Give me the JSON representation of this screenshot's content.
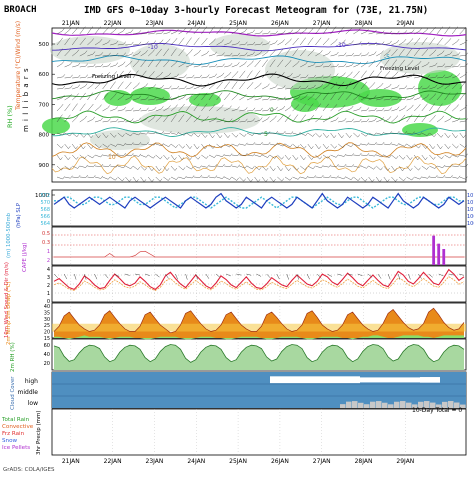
{
  "station": "BROACH",
  "title": "IMD GFS 0~10day 3-hourly Forecast Meteogram for (73E, 21.75N)",
  "credit": "GrADS: COLA/IGES",
  "dates": [
    "21JAN",
    "22JAN",
    "23JAN",
    "24JAN",
    "25JAN",
    "26JAN",
    "27JAN",
    "28JAN",
    "29JAN"
  ],
  "panels": {
    "upper": {
      "left_labels": [
        "RH (%)",
        "Temperature (°C)/Wind (m/s)"
      ],
      "right_label": "m i l l i b a r s",
      "ticks": [
        "500",
        "600",
        "700",
        "800",
        "900",
        "1000"
      ],
      "annotations": [
        "Freezing Level",
        "Freezing Level",
        "-10",
        "-10",
        "-5",
        "0",
        "5",
        "5",
        "10"
      ]
    },
    "gpm": {
      "left_labels": [
        "(m) 1000-500mb",
        "(hPa) SLP"
      ],
      "left_ticks": [
        "572",
        "570",
        "568",
        "566",
        "564"
      ],
      "right_ticks": [
        "1014",
        "1012",
        "1010",
        "1008",
        "1006"
      ]
    },
    "cape": {
      "left_label": "CAPE (J/kg)",
      "ticks": [
        "0.5",
        "0.3",
        "1",
        "2"
      ]
    },
    "wind": {
      "left_label": "10m Wind Speed & Dir (m/s)",
      "ticks": [
        "4",
        "3",
        "2",
        "1",
        "0"
      ]
    },
    "temp": {
      "left_label": "2m Temp 2m Dewp (°C)",
      "ticks": [
        "40",
        "35",
        "30",
        "25",
        "20",
        "15"
      ]
    },
    "rh": {
      "left_label": "2m RH (%)",
      "ticks": [
        "60",
        "40",
        "20"
      ]
    },
    "cloud": {
      "left_label": "Cloud Cover",
      "rows": [
        "high",
        "middle",
        "low"
      ]
    },
    "precip": {
      "left_labels": [
        "Total Rain",
        "Convective",
        "Frz Rain",
        "Snow",
        "Ice Pellets",
        "3hr Precip (mm)"
      ],
      "total_label": "10-Day Total = 0"
    }
  },
  "colors": {
    "blue_bg": "#4f8fc0",
    "cloud_fill": "#c8c8c8",
    "rh_green": "#2ecc40",
    "temp_orange": "#e88a1a",
    "dewp_green": "#8ade6a",
    "slp_blue": "#1f3fbf",
    "gpm_cyan": "#39b8d8",
    "wind_red": "#e0203a",
    "cape_purple": "#b030d0"
  },
  "chart_data": [
    {
      "type": "line",
      "title": "10m Wind Speed & Dir",
      "ylabel": "(m/s)",
      "x": [
        0,
        1,
        2,
        3,
        4,
        5,
        6,
        7,
        8,
        9,
        10,
        11,
        12,
        13,
        14,
        15,
        16,
        17,
        18,
        19,
        20,
        21,
        22,
        23,
        24,
        25,
        26,
        27,
        28,
        29,
        30,
        31,
        32,
        33,
        34,
        35,
        36,
        37,
        38,
        39,
        40,
        41,
        42,
        43,
        44,
        45,
        46,
        47,
        48,
        49,
        50,
        51,
        52,
        53,
        54,
        55,
        56,
        57,
        58,
        59,
        60,
        61,
        62,
        63,
        64,
        65,
        66,
        67,
        68,
        69,
        70,
        71,
        72,
        73,
        74,
        75,
        76,
        77,
        78,
        79,
        80,
        81
      ],
      "series": [
        {
          "values": [
            2.3,
            2.6,
            2.1,
            1.6,
            1.4,
            2.0,
            2.9,
            2.5,
            1.9,
            1.5,
            1.6,
            2.4,
            3.1,
            2.6,
            2.0,
            1.8,
            2.1,
            2.8,
            2.3,
            1.7,
            1.4,
            1.9,
            2.9,
            3.3,
            2.6,
            2.0,
            1.6,
            2.3,
            3.0,
            2.4,
            1.8,
            1.5,
            2.1,
            2.9,
            2.5,
            1.9,
            1.6,
            2.2,
            2.8,
            2.1,
            1.6,
            1.5,
            2.0,
            2.7,
            2.3,
            1.9,
            1.7,
            2.4,
            3.0,
            2.5,
            2.0,
            1.8,
            2.3,
            3.1,
            2.8,
            2.2,
            1.9,
            2.5,
            3.2,
            2.7,
            2.1,
            1.8,
            2.4,
            3.0,
            2.4,
            1.9,
            1.7,
            2.5,
            3.4,
            3.0,
            2.3,
            2.0,
            2.6,
            3.3,
            2.7,
            2.1,
            1.9,
            2.7,
            3.6,
            3.1,
            2.4,
            2.8
          ]
        }
      ],
      "ylim": [
        0,
        4
      ]
    },
    {
      "type": "area",
      "title": "2m Temp / 2m Dewp",
      "ylabel": "(°C)",
      "series": [
        {
          "values": [
            20,
            24,
            32,
            35,
            30,
            25,
            22,
            20,
            21,
            25,
            33,
            36,
            31,
            26,
            22,
            20,
            20,
            24,
            33,
            35,
            30,
            25,
            22,
            19,
            20,
            25,
            34,
            36,
            31,
            26,
            22,
            20,
            21,
            25,
            33,
            35,
            30,
            25,
            22,
            20,
            20,
            24,
            33,
            35,
            31,
            26,
            22,
            20,
            21,
            25,
            34,
            36,
            31,
            25,
            22,
            20,
            21,
            25,
            33,
            35,
            30,
            25,
            22,
            20,
            21,
            26,
            34,
            37,
            32,
            27,
            23,
            21,
            22,
            26,
            35,
            38,
            33,
            27,
            23,
            21,
            22,
            27
          ]
        },
        {
          "values": [
            16,
            16,
            15,
            14,
            15,
            16,
            17,
            16,
            16,
            16,
            15,
            14,
            15,
            16,
            16,
            16,
            15,
            15,
            14,
            14,
            15,
            16,
            16,
            16,
            16,
            15,
            14,
            14,
            15,
            16,
            16,
            16,
            15,
            15,
            14,
            14,
            15,
            16,
            16,
            16,
            16,
            15,
            14,
            14,
            15,
            16,
            16,
            16,
            16,
            15,
            14,
            14,
            15,
            16,
            16,
            16,
            16,
            15,
            15,
            14,
            15,
            16,
            16,
            17,
            17,
            16,
            15,
            15,
            16,
            17,
            17,
            17,
            17,
            16,
            16,
            15,
            16,
            17,
            17,
            17,
            17,
            17
          ]
        }
      ],
      "ylim": [
        15,
        42
      ]
    },
    {
      "type": "area",
      "title": "2m RH",
      "ylabel": "(%)",
      "series": [
        {
          "values": [
            70,
            65,
            40,
            25,
            30,
            50,
            65,
            72,
            70,
            62,
            38,
            24,
            30,
            52,
            66,
            72,
            70,
            60,
            36,
            24,
            32,
            54,
            68,
            74,
            72,
            60,
            34,
            22,
            30,
            52,
            66,
            72,
            70,
            60,
            36,
            24,
            30,
            52,
            66,
            72,
            70,
            62,
            38,
            26,
            32,
            54,
            68,
            74,
            72,
            62,
            36,
            24,
            30,
            52,
            66,
            72,
            70,
            60,
            36,
            24,
            32,
            54,
            68,
            74,
            72,
            62,
            38,
            26,
            32,
            54,
            68,
            74,
            72,
            60,
            36,
            24,
            30,
            52,
            66,
            72,
            70,
            60
          ]
        }
      ],
      "ylim": [
        0,
        90
      ]
    },
    {
      "type": "line",
      "title": "GPM 1000-500mb / SLP",
      "series": [
        {
          "values": [
            1011,
            1012,
            1013,
            1011,
            1010,
            1011,
            1012,
            1013,
            1012,
            1011,
            1012,
            1013,
            1012,
            1011,
            1010,
            1012,
            1013,
            1012,
            1011,
            1010,
            1011,
            1012,
            1013,
            1012,
            1011,
            1010,
            1012,
            1013,
            1012,
            1011,
            1010,
            1011,
            1013,
            1014,
            1012,
            1011,
            1010,
            1011,
            1013,
            1012,
            1011,
            1010,
            1012,
            1013,
            1012,
            1011,
            1010,
            1011,
            1013,
            1012,
            1011,
            1010,
            1012,
            1014,
            1012,
            1011,
            1010,
            1011,
            1013,
            1012,
            1011,
            1010,
            1011,
            1013,
            1012,
            1011,
            1010,
            1012,
            1014,
            1012,
            1011,
            1010,
            1011,
            1013,
            1012,
            1011,
            1010,
            1011,
            1013,
            1012,
            1011,
            1012
          ]
        },
        {
          "values": [
            570,
            570,
            571,
            571,
            570,
            569,
            569,
            570,
            571,
            571,
            570,
            569,
            569,
            570,
            571,
            571,
            570,
            569,
            569,
            570,
            571,
            571,
            570,
            569,
            568,
            569,
            570,
            571,
            571,
            570,
            569,
            568,
            569,
            570,
            571,
            570,
            569,
            568,
            568,
            569,
            570,
            571,
            570,
            569,
            568,
            569,
            570,
            571,
            571,
            570,
            569,
            568,
            569,
            570,
            571,
            570,
            569,
            569,
            570,
            571,
            571,
            570,
            569,
            568,
            569,
            570,
            571,
            571,
            570,
            569,
            569,
            570,
            571,
            571,
            570,
            569,
            569,
            570,
            571,
            571,
            570,
            570
          ]
        }
      ]
    },
    {
      "type": "bar",
      "title": "CAPE",
      "x": [
        75,
        76,
        77
      ],
      "values": [
        2.2,
        1.6,
        1.2
      ]
    }
  ]
}
